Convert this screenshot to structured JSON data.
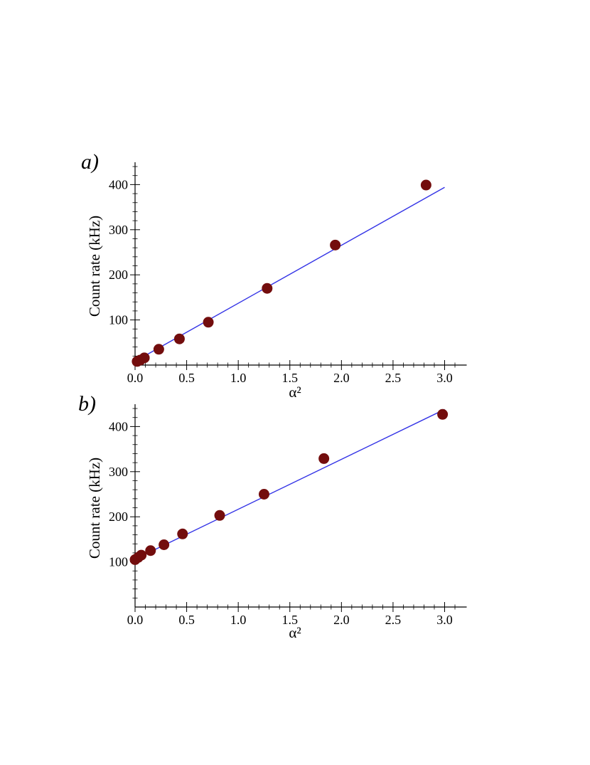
{
  "chart_data": [
    {
      "type": "scatter",
      "panel_label": "a)",
      "title": "",
      "xlabel": "α²",
      "ylabel": "Count rate (kHz)",
      "xlim": [
        0,
        3.2
      ],
      "ylim": [
        0,
        450
      ],
      "xticks": [
        "0.0",
        "0.5",
        "1.0",
        "1.5",
        "2.0",
        "2.5",
        "3.0"
      ],
      "yticks": [
        "100",
        "200",
        "300",
        "400"
      ],
      "points": [
        {
          "x": 0.02,
          "y": 8
        },
        {
          "x": 0.05,
          "y": 11
        },
        {
          "x": 0.09,
          "y": 16
        },
        {
          "x": 0.23,
          "y": 35
        },
        {
          "x": 0.43,
          "y": 58
        },
        {
          "x": 0.71,
          "y": 95
        },
        {
          "x": 1.28,
          "y": 170
        },
        {
          "x": 1.94,
          "y": 266
        },
        {
          "x": 2.82,
          "y": 399
        }
      ],
      "fit": [
        {
          "x": 0.02,
          "y": 11
        },
        {
          "x": 3.0,
          "y": 394
        }
      ],
      "grid": false,
      "marker_color": "#730d0d",
      "line_color": "#3333e6"
    },
    {
      "type": "scatter",
      "panel_label": "b)",
      "title": "",
      "xlabel": "α²",
      "ylabel": "Count rate (kHz)",
      "xlim": [
        0,
        3.2
      ],
      "ylim": [
        0,
        450
      ],
      "xticks": [
        "0.0",
        "0.5",
        "1.0",
        "1.5",
        "2.0",
        "2.5",
        "3.0"
      ],
      "yticks": [
        "100",
        "200",
        "300",
        "400"
      ],
      "points": [
        {
          "x": 0.0,
          "y": 105
        },
        {
          "x": 0.03,
          "y": 110
        },
        {
          "x": 0.06,
          "y": 115
        },
        {
          "x": 0.15,
          "y": 125
        },
        {
          "x": 0.28,
          "y": 138
        },
        {
          "x": 0.46,
          "y": 162
        },
        {
          "x": 0.82,
          "y": 203
        },
        {
          "x": 1.25,
          "y": 250
        },
        {
          "x": 1.83,
          "y": 329
        },
        {
          "x": 2.98,
          "y": 427
        }
      ],
      "fit": [
        {
          "x": 0.0,
          "y": 106
        },
        {
          "x": 3.0,
          "y": 438
        }
      ],
      "grid": false,
      "marker_color": "#730d0d",
      "line_color": "#3333e6"
    }
  ]
}
